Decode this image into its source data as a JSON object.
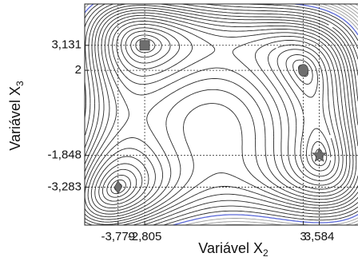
{
  "chart_data": {
    "type": "contour",
    "xlabel": "Variável X",
    "xlabel_sub": "2",
    "ylabel": "Variável X",
    "ylabel_sub": "3",
    "xlim": [
      -5,
      5
    ],
    "ylim": [
      -5,
      5
    ],
    "xticks": [
      {
        "value": -3.779,
        "label": "-3,779"
      },
      {
        "value": -2.805,
        "label": "-2,805"
      },
      3,
      {
        "value": 3.584,
        "label": "3,584"
      }
    ],
    "yticks": [
      {
        "value": 3.131,
        "label": "3,131"
      },
      2,
      {
        "value": -1.848,
        "label": "-1,848"
      },
      {
        "value": -3.283,
        "label": "-3,283"
      }
    ],
    "grid": true,
    "levels": [
      1,
      4,
      10,
      20,
      32,
      48,
      66,
      86,
      108,
      132,
      158,
      186,
      216,
      250,
      290,
      335,
      385
    ],
    "color": "#2a2a2a",
    "boundary_level": 430,
    "boundary_color": "#5a68d8",
    "outer_levels": [
      480,
      530,
      580,
      640,
      700,
      770,
      850
    ],
    "outer_color": "#9a9a9a",
    "points": [
      {
        "x": -2.805,
        "y": 3.131,
        "marker": "square"
      },
      {
        "x": 3,
        "y": 2,
        "marker": "ellipse"
      },
      {
        "x": 3.584,
        "y": -1.848,
        "marker": "star"
      },
      {
        "x": -3.779,
        "y": -3.283,
        "marker": "diamond"
      }
    ],
    "marker_color": "#6e6e6e"
  }
}
